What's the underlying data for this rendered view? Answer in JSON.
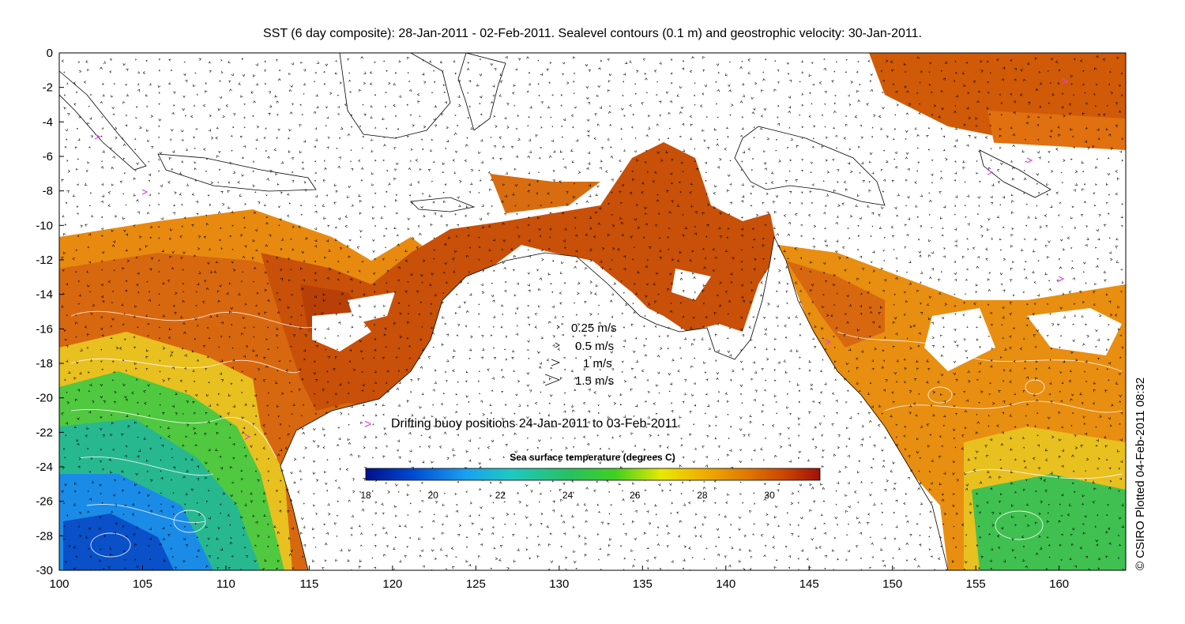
{
  "title": "SST (6 day composite): 28-Jan-2011 - 02-Feb-2011. Sealevel contours (0.1 m) and geostrophic velocity: 30-Jan-2011.",
  "credit": "© CSIRO Plotted 04-Feb-2011 08:32",
  "axes": {
    "x_ticks": [
      "100",
      "105",
      "110",
      "115",
      "120",
      "125",
      "130",
      "135",
      "140",
      "145",
      "150",
      "155",
      "160"
    ],
    "y_ticks": [
      "0",
      "-2",
      "-4",
      "-6",
      "-8",
      "-10",
      "-12",
      "-14",
      "-16",
      "-18",
      "-20",
      "-22",
      "-24",
      "-26",
      "-28",
      "-30"
    ],
    "xlim": [
      100,
      164
    ],
    "ylim": [
      -30,
      0
    ]
  },
  "velocity_legend": {
    "items": [
      "0.25 m/s",
      "0.5 m/s",
      "1 m/s",
      "1.5 m/s"
    ]
  },
  "buoy_legend": {
    "marker": ">",
    "text": "Drifting buoy positions 24-Jan-2011 to 03-Feb-2011",
    "color": "#e040e0"
  },
  "colorbar": {
    "title": "Sea surface temperature (degrees C)",
    "ticks": [
      "18",
      "20",
      "22",
      "24",
      "26",
      "28",
      "30"
    ],
    "range": [
      18,
      31.5
    ],
    "stops": [
      "#00108a",
      "#0048d0",
      "#1aa0f0",
      "#20c8c0",
      "#28c060",
      "#40d020",
      "#e8e800",
      "#f0b000",
      "#e07800",
      "#c84000",
      "#a01008"
    ]
  }
}
